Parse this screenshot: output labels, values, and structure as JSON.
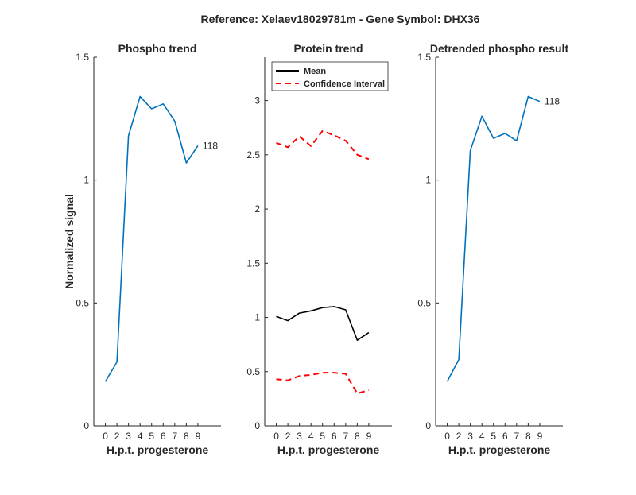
{
  "figure": {
    "title": "Reference:  Xelaev18029781m - Gene Symbol:  DHX36",
    "ylabel": "Normalized signal"
  },
  "colors": {
    "phospho": "#0072BD",
    "mean": "#000000",
    "ci": "#FF0000",
    "axis": "#262626"
  },
  "chart_data": [
    {
      "id": "phospho",
      "type": "line",
      "title": "Phospho trend",
      "xlabel": "H.p.t. progesterone",
      "xticks": [
        0,
        2,
        3,
        4,
        5,
        6,
        7,
        8,
        9
      ],
      "xlim": [
        -1,
        10
      ],
      "yticks": [
        "0",
        "0.5",
        "1",
        "1.5"
      ],
      "ylim": [
        0,
        1.5
      ],
      "series": [
        {
          "x": [
            0,
            1,
            2,
            3,
            4,
            5,
            6,
            7,
            8
          ],
          "values": [
            0.18,
            0.26,
            1.18,
            1.34,
            1.29,
            1.31,
            1.24,
            1.07,
            1.14
          ],
          "color": "#0072BD",
          "style": "solid"
        }
      ],
      "end_label": "118"
    },
    {
      "id": "protein",
      "type": "line",
      "title": "Protein trend",
      "xlabel": "H.p.t. progesterone",
      "xticks": [
        0,
        2,
        3,
        4,
        5,
        6,
        7,
        8,
        9
      ],
      "xlim": [
        -1,
        10
      ],
      "yticks": [
        "0",
        "0.5",
        "1",
        "1.5",
        "2",
        "2.5",
        "3"
      ],
      "ylim": [
        0,
        3.4
      ],
      "series": [
        {
          "name": "Mean",
          "x": [
            0,
            1,
            2,
            3,
            4,
            5,
            6,
            7,
            8
          ],
          "values": [
            1.01,
            0.97,
            1.04,
            1.06,
            1.09,
            1.1,
            1.07,
            0.79,
            0.86
          ],
          "color": "#000000",
          "style": "solid"
        },
        {
          "name": "Confidence Interval",
          "x": [
            0,
            1,
            2,
            3,
            4,
            5,
            6,
            7,
            8
          ],
          "values": [
            2.61,
            2.57,
            2.67,
            2.58,
            2.72,
            2.68,
            2.63,
            2.5,
            2.46
          ],
          "color": "#FF0000",
          "style": "dashed"
        },
        {
          "x": [
            0,
            1,
            2,
            3,
            4,
            5,
            6,
            7,
            8
          ],
          "values": [
            0.43,
            0.42,
            0.46,
            0.47,
            0.49,
            0.49,
            0.48,
            0.3,
            0.33
          ],
          "color": "#FF0000",
          "style": "dashed"
        }
      ],
      "legend": {
        "placement": "top-left",
        "entries": [
          "Mean",
          "Confidence Interval"
        ]
      }
    },
    {
      "id": "detrended",
      "type": "line",
      "title": "Detrended phospho result",
      "xlabel": "H.p.t. progesterone",
      "xticks": [
        0,
        2,
        3,
        4,
        5,
        6,
        7,
        8,
        9
      ],
      "xlim": [
        -1,
        10
      ],
      "yticks": [
        "0",
        "0.5",
        "1",
        "1.5"
      ],
      "ylim": [
        0,
        1.5
      ],
      "series": [
        {
          "x": [
            0,
            1,
            2,
            3,
            4,
            5,
            6,
            7,
            8
          ],
          "values": [
            0.18,
            0.27,
            1.12,
            1.26,
            1.17,
            1.19,
            1.16,
            1.34,
            1.32
          ],
          "color": "#0072BD",
          "style": "solid"
        }
      ],
      "end_label": "118"
    }
  ]
}
